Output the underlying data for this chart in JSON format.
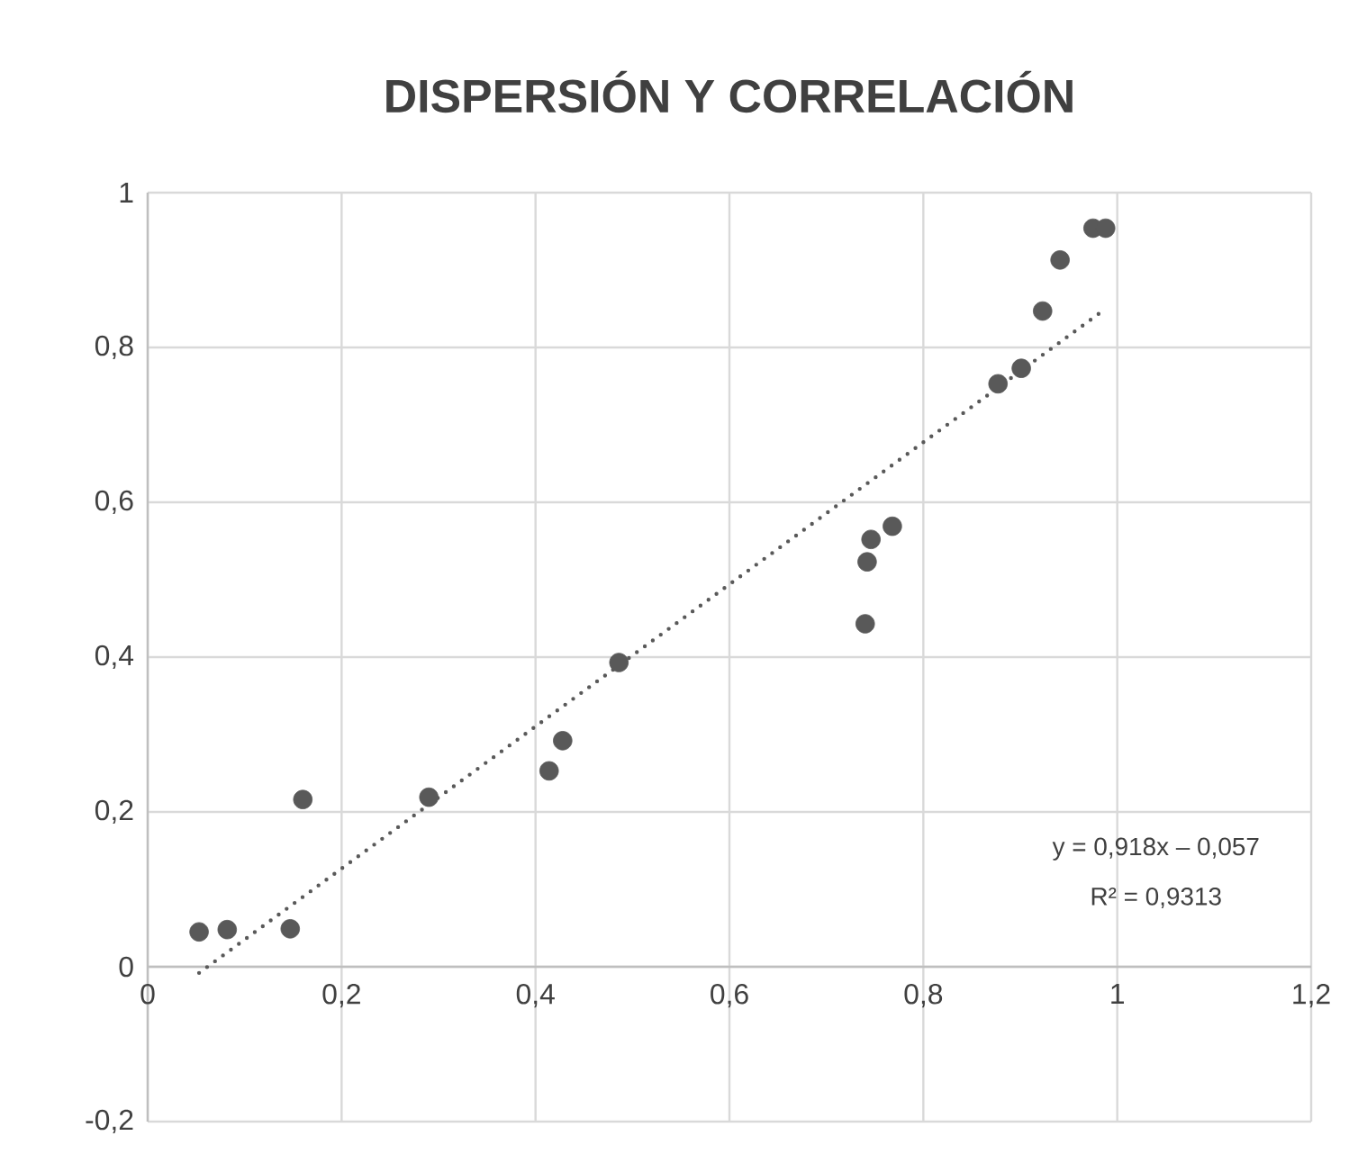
{
  "chart_data": {
    "type": "scatter",
    "title": "DISPERSIÓN Y CORRELACIÓN",
    "xlim": [
      0,
      1.2
    ],
    "ylim": [
      -0.2,
      1
    ],
    "xticks": [
      0,
      {
        "value": 0.2,
        "label": "0,2"
      },
      {
        "value": 0.4,
        "label": "0,4"
      },
      {
        "value": 0.6,
        "label": "0,6"
      },
      {
        "value": 0.8,
        "label": "0,8"
      },
      1,
      {
        "value": 1.2,
        "label": "1,2"
      }
    ],
    "yticks": [
      {
        "value": -0.2,
        "label": "-0,2"
      },
      0,
      {
        "value": 0.2,
        "label": "0,2"
      },
      {
        "value": 0.4,
        "label": "0,4"
      },
      {
        "value": 0.6,
        "label": "0,6"
      },
      {
        "value": 0.8,
        "label": "0,8"
      },
      1
    ],
    "grid": true,
    "marker": "circle",
    "series": [
      {
        "color": "#595959",
        "x": [
          0.053,
          0.082,
          0.147,
          0.16,
          0.29,
          0.414,
          0.428,
          0.486,
          0.74,
          0.742,
          0.746,
          0.768,
          0.877,
          0.901,
          0.923,
          0.941,
          0.975,
          0.988
        ],
        "values": [
          0.045,
          0.048,
          0.049,
          0.216,
          0.219,
          0.253,
          0.292,
          0.393,
          0.443,
          0.523,
          0.552,
          0.569,
          0.753,
          0.773,
          0.847,
          0.913,
          0.954,
          0.954
        ]
      },
      {
        "type": "line",
        "color": "#595959",
        "line_style": "dotted",
        "marker": "none",
        "x": [
          0.053,
          0.988
        ],
        "values": [
          -0.008,
          0.85
        ]
      }
    ],
    "annotations": [
      "y = 0,918x – 0,057",
      "R² = 0,9313"
    ]
  }
}
